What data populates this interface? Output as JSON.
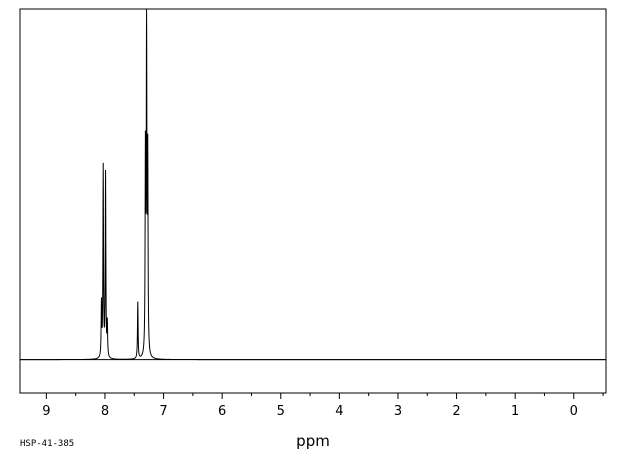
{
  "chart_data": {
    "type": "line",
    "xlabel": "ppm",
    "xlim": [
      9.45,
      -0.55
    ],
    "x_reversed": true,
    "ylim": [
      -0.1,
      1.05
    ],
    "grid": false,
    "legend": "none",
    "ticks": [
      9,
      8,
      7,
      6,
      5,
      4,
      3,
      2,
      1,
      0
    ],
    "tick_labels": [
      "9",
      "8",
      "7",
      "6",
      "5",
      "4",
      "3",
      "2",
      "1",
      "0"
    ],
    "peaks": [
      {
        "x": 8.06,
        "y": 0.16
      },
      {
        "x": 8.03,
        "y": 0.57
      },
      {
        "x": 7.99,
        "y": 0.55
      },
      {
        "x": 7.96,
        "y": 0.1
      },
      {
        "x": 7.44,
        "y": 0.17
      },
      {
        "x": 7.31,
        "y": 0.59
      },
      {
        "x": 7.29,
        "y": 1.0
      },
      {
        "x": 7.27,
        "y": 0.58
      }
    ],
    "line_color": "#000000",
    "sample_id": "HSP-41-385"
  }
}
